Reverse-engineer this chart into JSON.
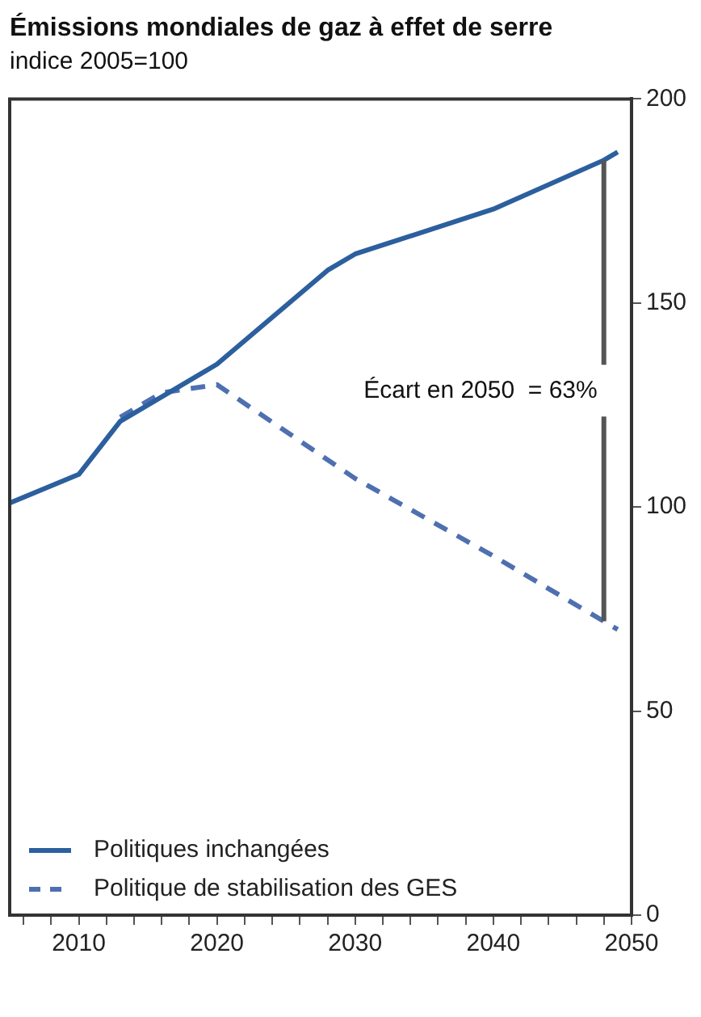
{
  "chart_data": {
    "type": "line",
    "title": "Émissions mondiales de gaz à effet de serre",
    "subtitle": "indice 2005=100",
    "series": [
      {
        "name": "Politiques inchangées",
        "color": "#2c5f9e",
        "line_style": "solid",
        "x": [
          2005,
          2010,
          2013,
          2020,
          2028,
          2030,
          2040,
          2048,
          2049
        ],
        "values": [
          101,
          108,
          121,
          135,
          158,
          162,
          173,
          185,
          187
        ]
      },
      {
        "name": "Politique de stabilisation des GES",
        "color": "#4f70b0",
        "line_style": "dashed",
        "x": [
          2013,
          2016,
          2020,
          2030,
          2040,
          2048,
          2049
        ],
        "values": [
          122,
          128,
          130,
          107,
          88,
          72,
          70
        ]
      }
    ],
    "annotations": [
      {
        "text": "Écart en 2050  = 63%",
        "x": 2048,
        "y": 185
      }
    ],
    "xlim": [
      2005,
      2050
    ],
    "xticks": [
      {
        "value": 2006,
        "label": null
      },
      {
        "value": 2008,
        "label": null
      },
      2010,
      {
        "value": 2012,
        "label": null
      },
      {
        "value": 2014,
        "label": null
      },
      {
        "value": 2016,
        "label": null
      },
      {
        "value": 2018,
        "label": null
      },
      2020,
      {
        "value": 2022,
        "label": null
      },
      {
        "value": 2024,
        "label": null
      },
      {
        "value": 2026,
        "label": null
      },
      {
        "value": 2028,
        "label": null
      },
      2030,
      {
        "value": 2032,
        "label": null
      },
      {
        "value": 2034,
        "label": null
      },
      {
        "value": 2036,
        "label": null
      },
      {
        "value": 2038,
        "label": null
      },
      2040,
      {
        "value": 2042,
        "label": null
      },
      {
        "value": 2044,
        "label": null
      },
      {
        "value": 2046,
        "label": null
      },
      {
        "value": 2048,
        "label": null
      },
      2050
    ],
    "ylim": [
      0,
      200
    ],
    "yticks": [
      0,
      50,
      100,
      150,
      200
    ],
    "grid": false,
    "legend": "bottom left",
    "marker": "none"
  }
}
